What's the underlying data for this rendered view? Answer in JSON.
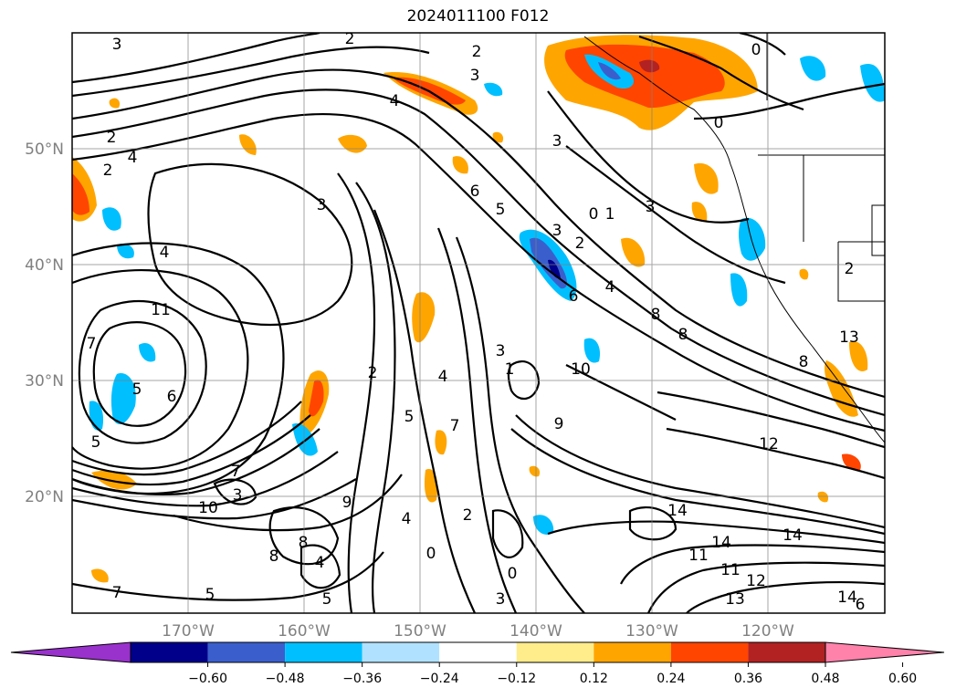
{
  "title": "2024011100 F012",
  "lat_labels": [
    "50°N",
    "40°N",
    "30°N",
    "20°N"
  ],
  "lon_labels": [
    "170°W",
    "160°W",
    "150°W",
    "140°W",
    "130°W",
    "120°W"
  ],
  "colorbar": {
    "ticks": [
      "−0.60",
      "−0.48",
      "−0.36",
      "−0.24",
      "−0.12",
      "0.12",
      "0.24",
      "0.36",
      "0.48",
      "0.60"
    ],
    "colors": [
      "#9932cc",
      "#00008b",
      "#3a5fcd",
      "#00bfff",
      "#b0e2ff",
      "#ffffff",
      "#ffec8b",
      "#ffa500",
      "#ff4500",
      "#b22222",
      "#ff82ab"
    ],
    "extend": "both"
  },
  "contour_labels": [
    "3",
    "2",
    "2",
    "3",
    "4",
    "3",
    "2",
    "4",
    "2",
    "0",
    "0",
    "3",
    "1",
    "0",
    "2",
    "3",
    "4",
    "5",
    "6",
    "3",
    "2",
    "4",
    "6",
    "8",
    "8",
    "11",
    "7",
    "6",
    "5",
    "5",
    "3",
    "1",
    "2",
    "4",
    "5",
    "7",
    "8",
    "9",
    "10",
    "12",
    "13",
    "14",
    "14",
    "14",
    "11",
    "11",
    "12",
    "13",
    "14",
    "6",
    "7",
    "5",
    "8",
    "8",
    "4",
    "5",
    "3",
    "0",
    "0",
    "4",
    "2",
    "3",
    "10",
    "7",
    "9"
  ],
  "grid": true
}
